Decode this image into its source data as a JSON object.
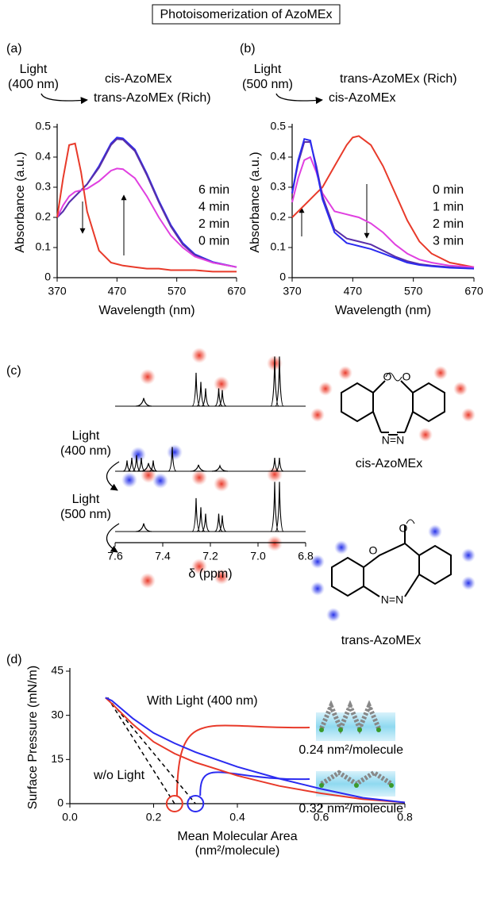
{
  "title": "Photoisomerization of AzoMEx",
  "chart_data": [
    {
      "type": "line",
      "panel_label": "(a)",
      "light": "Light",
      "light_wavelength": "(400 nm)",
      "from_state": "cis-AzoMEx",
      "to_state": "trans-AzoMEx (Rich)",
      "xlabel": "Wavelength (nm)",
      "ylabel": "Absorbance (a.u.)",
      "xlim": [
        370,
        670
      ],
      "ylim": [
        0,
        0.5
      ],
      "xticks": [
        370,
        470,
        570,
        670
      ],
      "yticks": [
        0,
        0.1,
        0.2,
        0.3,
        0.4,
        0.5
      ],
      "x": [
        370,
        380,
        390,
        400,
        410,
        420,
        440,
        460,
        470,
        480,
        500,
        520,
        540,
        560,
        580,
        600,
        630,
        670
      ],
      "series": [
        {
          "name": "6 min",
          "color": "#2b2bf0",
          "values": [
            0.2,
            0.22,
            0.25,
            0.27,
            0.29,
            0.31,
            0.37,
            0.445,
            0.465,
            0.462,
            0.425,
            0.345,
            0.255,
            0.175,
            0.115,
            0.078,
            0.052,
            0.035
          ]
        },
        {
          "name": "4 min",
          "color": "#5a2fa8",
          "values": [
            0.2,
            0.22,
            0.25,
            0.27,
            0.29,
            0.31,
            0.365,
            0.44,
            0.46,
            0.458,
            0.42,
            0.34,
            0.25,
            0.17,
            0.11,
            0.075,
            0.05,
            0.035
          ]
        },
        {
          "name": "2 min",
          "color": "#e040e0",
          "values": [
            0.2,
            0.24,
            0.27,
            0.285,
            0.29,
            0.295,
            0.32,
            0.355,
            0.362,
            0.36,
            0.33,
            0.27,
            0.2,
            0.14,
            0.1,
            0.07,
            0.05,
            0.035
          ]
        },
        {
          "name": "0 min",
          "color": "#e83a2a",
          "values": [
            0.2,
            0.33,
            0.44,
            0.445,
            0.35,
            0.22,
            0.09,
            0.05,
            0.045,
            0.04,
            0.035,
            0.03,
            0.03,
            0.025,
            0.025,
            0.025,
            0.02,
            0.02
          ]
        }
      ]
    },
    {
      "type": "line",
      "panel_label": "(b)",
      "light": "Light",
      "light_wavelength": "(500 nm)",
      "from_state": "trans-AzoMEx (Rich)",
      "to_state": "cis-AzoMEx",
      "xlabel": "Wavelength (nm)",
      "ylabel": "Absorbance (a.u.)",
      "xlim": [
        370,
        670
      ],
      "ylim": [
        0,
        0.5
      ],
      "xticks": [
        370,
        470,
        570,
        670
      ],
      "yticks": [
        0,
        0.1,
        0.2,
        0.3,
        0.4,
        0.5
      ],
      "x": [
        370,
        380,
        390,
        400,
        410,
        420,
        440,
        460,
        470,
        480,
        500,
        520,
        540,
        560,
        580,
        600,
        630,
        670
      ],
      "series": [
        {
          "name": "0 min",
          "color": "#e83a2a",
          "values": [
            0.2,
            0.22,
            0.24,
            0.26,
            0.28,
            0.3,
            0.37,
            0.44,
            0.465,
            0.47,
            0.44,
            0.37,
            0.28,
            0.19,
            0.12,
            0.08,
            0.05,
            0.035
          ]
        },
        {
          "name": "1 min",
          "color": "#e040e0",
          "values": [
            0.25,
            0.33,
            0.39,
            0.4,
            0.35,
            0.28,
            0.22,
            0.21,
            0.205,
            0.2,
            0.18,
            0.15,
            0.11,
            0.08,
            0.06,
            0.05,
            0.04,
            0.035
          ]
        },
        {
          "name": "2 min",
          "color": "#5a2fa8",
          "values": [
            0.28,
            0.38,
            0.45,
            0.45,
            0.37,
            0.27,
            0.16,
            0.13,
            0.125,
            0.12,
            0.11,
            0.09,
            0.07,
            0.055,
            0.045,
            0.04,
            0.035,
            0.03
          ]
        },
        {
          "name": "3 min",
          "color": "#2b2bf0",
          "values": [
            0.28,
            0.39,
            0.46,
            0.455,
            0.36,
            0.26,
            0.15,
            0.115,
            0.11,
            0.105,
            0.095,
            0.08,
            0.065,
            0.05,
            0.042,
            0.038,
            0.033,
            0.03
          ]
        }
      ]
    },
    {
      "type": "spectrum",
      "panel_label": "(c)",
      "xlabel": "δ (ppm)",
      "xlim": [
        7.6,
        6.8
      ],
      "xticks": [
        {
          "value": 7.6,
          "label": "7.6"
        },
        {
          "value": 7.4,
          "label": "7.4"
        },
        {
          "value": 7.2,
          "label": "7.2"
        },
        {
          "value": 7.0,
          "label": "7.0"
        },
        {
          "value": 6.8,
          "label": "6.8"
        }
      ],
      "steps": [
        {
          "light": "Light",
          "light_wavelength": "(400 nm)"
        },
        {
          "light": "Light",
          "light_wavelength": "(500 nm)"
        }
      ],
      "molecules": [
        "cis-AzoMEx",
        "trans-AzoMEx"
      ],
      "series": [
        {
          "color": "#000000",
          "x": [
            7.48,
            7.26,
            7.24,
            7.22,
            7.165,
            7.15,
            6.93,
            6.91
          ],
          "values": [
            0.15,
            0.62,
            0.45,
            0.33,
            0.33,
            0.3,
            0.92,
            0.92
          ]
        },
        {
          "color": "#000000",
          "x": [
            7.55,
            7.53,
            7.51,
            7.49,
            7.46,
            7.44,
            7.36,
            7.25,
            7.16,
            6.93,
            6.91
          ],
          "values": [
            0.2,
            0.25,
            0.3,
            0.25,
            0.15,
            0.2,
            0.45,
            0.12,
            0.1,
            0.25,
            0.25
          ]
        },
        {
          "color": "#000000",
          "x": [
            7.48,
            7.26,
            7.24,
            7.22,
            7.165,
            7.15,
            6.93,
            6.91
          ],
          "values": [
            0.15,
            0.62,
            0.45,
            0.33,
            0.33,
            0.3,
            0.92,
            0.92
          ]
        }
      ]
    },
    {
      "type": "line",
      "panel_label": "(d)",
      "xlabel": "Mean Molecular Area",
      "xlabel_unit": "(nm²/molecule)",
      "ylabel": "Surface Pressure (mN/m)",
      "xlim": [
        0,
        0.8
      ],
      "ylim": [
        0,
        45
      ],
      "xticks": [
        {
          "value": 0,
          "label": "0.0"
        },
        0.2,
        0.4,
        0.6,
        0.8
      ],
      "yticks": [
        0,
        15,
        30,
        45
      ],
      "x": [
        0.085,
        0.1,
        0.15,
        0.2,
        0.25,
        0.3,
        0.4,
        0.5,
        0.6,
        0.7,
        0.8
      ],
      "series": [
        {
          "name": "w/o Light",
          "color": "#e83a2a",
          "values": [
            36,
            34,
            27,
            21,
            17,
            14,
            9.5,
            6,
            3.5,
            1.5,
            0.4
          ]
        },
        {
          "name": "With Light (400 nm)",
          "color": "#2b2bf0",
          "values": [
            36,
            35,
            29,
            24,
            20.5,
            17.5,
            12.5,
            8.5,
            5,
            2,
            0.4
          ]
        }
      ],
      "fit_lines": [
        {
          "color": "#e83a2a",
          "x": [
            0.09,
            0.25
          ],
          "values": [
            36,
            0
          ]
        },
        {
          "color": "#2b2bf0",
          "x": [
            0.09,
            0.3
          ],
          "values": [
            36,
            0
          ]
        }
      ],
      "annotations": [
        "0.24 nm²/molecule",
        "0.32 nm²/molecule"
      ]
    }
  ]
}
